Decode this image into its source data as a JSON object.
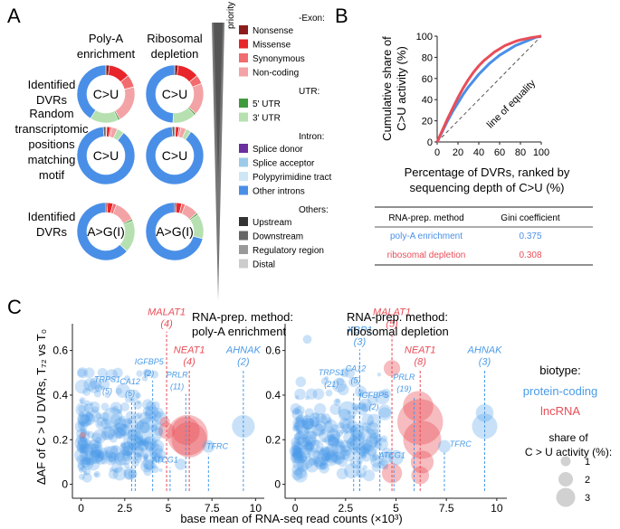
{
  "panels": {
    "a": "A",
    "b": "B",
    "c": "C"
  },
  "colors": {
    "nonsense": "#8c1c1c",
    "missense": "#e8252a",
    "synonymous": "#f26b6e",
    "noncoding": "#f3a3a6",
    "utr5": "#3f9a3c",
    "utr3": "#b6e0b0",
    "splice_donor": "#6b2fa0",
    "splice_acceptor": "#9ccbe9",
    "polypyr": "#cfe6f5",
    "other_introns": "#4a8fe7",
    "upstream": "#333333",
    "downstream": "#666666",
    "regulatory": "#999999",
    "distal": "#cccccc",
    "polyA": "#4a8fe7",
    "ribo": "#e84e58",
    "protein_coding": "#4a9be8",
    "lncrna": "#e84e58",
    "diagonal": "#555555"
  },
  "panelA": {
    "col_headers": [
      "Poly-A\nenrichment",
      "Ribosomal\ndepletion"
    ],
    "priority_label": "priority",
    "row_labels": [
      "Identified\nDVRs",
      "Random\ntranscriptomic\npositions\nmatching\nmotif",
      "Identified\nDVRs"
    ],
    "donut_centers": [
      "C>U",
      "C>U",
      "A>G(I)"
    ],
    "legend": [
      {
        "header": "Exon:",
        "items": [
          {
            "key": "nonsense",
            "label": "Nonsense"
          },
          {
            "key": "missense",
            "label": "Missense"
          },
          {
            "key": "synonymous",
            "label": "Synonymous"
          },
          {
            "key": "noncoding",
            "label": "Non-coding"
          }
        ]
      },
      {
        "header": "UTR:",
        "items": [
          {
            "key": "utr5",
            "label": "5' UTR"
          },
          {
            "key": "utr3",
            "label": "3' UTR"
          }
        ]
      },
      {
        "header": "Intron:",
        "items": [
          {
            "key": "splice_donor",
            "label": "Splice donor"
          },
          {
            "key": "splice_acceptor",
            "label": "Splice acceptor"
          },
          {
            "key": "polypyr",
            "label": "Polypyrimidine tract"
          },
          {
            "key": "other_introns",
            "label": "Other introns"
          }
        ]
      },
      {
        "header": "Others:",
        "items": [
          {
            "key": "upstream",
            "label": "Upstream"
          },
          {
            "key": "downstream",
            "label": "Downstream"
          },
          {
            "key": "regulatory",
            "label": "Regulatory region"
          },
          {
            "key": "distal",
            "label": "Distal"
          }
        ]
      }
    ]
  },
  "chart_data": [
    {
      "type": "pie",
      "title": "Genomic annotation of edited sites (donut charts, share in %)",
      "columns": [
        "Poly-A enrichment",
        "Ribosomal depletion"
      ],
      "donuts": [
        {
          "row": "Identified DVRs",
          "center": "C>U",
          "method": "Poly-A enrichment",
          "segments": [
            {
              "key": "nonsense",
              "value": 2
            },
            {
              "key": "missense",
              "value": 12
            },
            {
              "key": "synonymous",
              "value": 7
            },
            {
              "key": "noncoding",
              "value": 21
            },
            {
              "key": "utr5",
              "value": 1
            },
            {
              "key": "utr3",
              "value": 16
            },
            {
              "key": "other_introns",
              "value": 41
            }
          ]
        },
        {
          "row": "Identified DVRs",
          "center": "C>U",
          "method": "Ribosomal depletion",
          "segments": [
            {
              "key": "nonsense",
              "value": 2
            },
            {
              "key": "missense",
              "value": 12
            },
            {
              "key": "synonymous",
              "value": 5
            },
            {
              "key": "noncoding",
              "value": 18
            },
            {
              "key": "utr5",
              "value": 1
            },
            {
              "key": "utr3",
              "value": 13
            },
            {
              "key": "other_introns",
              "value": 49
            }
          ]
        },
        {
          "row": "Random transcriptomic positions matching motif",
          "center": "C>U",
          "method": "Poly-A enrichment",
          "segments": [
            {
              "key": "nonsense",
              "value": 0.5
            },
            {
              "key": "missense",
              "value": 2
            },
            {
              "key": "synonymous",
              "value": 1
            },
            {
              "key": "noncoding",
              "value": 3
            },
            {
              "key": "utr3",
              "value": 4
            },
            {
              "key": "other_introns",
              "value": 88
            },
            {
              "key": "downstream",
              "value": 1.5
            }
          ]
        },
        {
          "row": "Random transcriptomic positions matching motif",
          "center": "C>U",
          "method": "Ribosomal depletion",
          "segments": [
            {
              "key": "nonsense",
              "value": 0.5
            },
            {
              "key": "missense",
              "value": 2
            },
            {
              "key": "synonymous",
              "value": 1
            },
            {
              "key": "noncoding",
              "value": 3
            },
            {
              "key": "utr3",
              "value": 3
            },
            {
              "key": "other_introns",
              "value": 89
            },
            {
              "key": "downstream",
              "value": 1.5
            }
          ]
        },
        {
          "row": "Identified DVRs",
          "center": "A>G(I)",
          "method": "Poly-A enrichment",
          "segments": [
            {
              "key": "nonsense",
              "value": 1
            },
            {
              "key": "missense",
              "value": 3
            },
            {
              "key": "synonymous",
              "value": 2
            },
            {
              "key": "noncoding",
              "value": 12
            },
            {
              "key": "utr5",
              "value": 1
            },
            {
              "key": "utr3",
              "value": 18
            },
            {
              "key": "other_introns",
              "value": 63
            }
          ]
        },
        {
          "row": "Identified DVRs",
          "center": "A>G(I)",
          "method": "Ribosomal depletion",
          "segments": [
            {
              "key": "nonsense",
              "value": 1
            },
            {
              "key": "missense",
              "value": 3
            },
            {
              "key": "synonymous",
              "value": 2
            },
            {
              "key": "noncoding",
              "value": 8
            },
            {
              "key": "utr5",
              "value": 1
            },
            {
              "key": "utr3",
              "value": 14
            },
            {
              "key": "other_introns",
              "value": 71
            }
          ]
        }
      ]
    },
    {
      "type": "line",
      "title": "",
      "xlabel": "Percentage of DVRs, ranked by\nsequencing depth of C>U (%)",
      "ylabel": "Cumulative share of\nC>U activity (%)",
      "xlim": [
        0,
        100
      ],
      "ylim": [
        0,
        100
      ],
      "xticks": [
        0,
        20,
        40,
        60,
        80,
        100
      ],
      "yticks": [
        0,
        20,
        40,
        60,
        80,
        100
      ],
      "series": [
        {
          "name": "poly-A enrichment",
          "color_key": "polyA",
          "x": [
            0,
            5,
            10,
            15,
            20,
            25,
            30,
            35,
            40,
            45,
            50,
            55,
            60,
            65,
            70,
            75,
            80,
            85,
            90,
            95,
            100
          ],
          "y": [
            0,
            10,
            20,
            29,
            37,
            45,
            52,
            58,
            64,
            69,
            74,
            78,
            82,
            85,
            88,
            91,
            93,
            95,
            97,
            99,
            100
          ]
        },
        {
          "name": "ribosomal depletion",
          "color_key": "ribo",
          "x": [
            0,
            5,
            10,
            15,
            20,
            25,
            30,
            35,
            40,
            45,
            50,
            55,
            60,
            65,
            70,
            75,
            80,
            85,
            90,
            95,
            100
          ],
          "y": [
            0,
            11,
            22,
            32,
            42,
            51,
            59,
            66,
            72,
            77,
            81,
            85,
            88,
            91,
            93,
            95,
            96.5,
            97.5,
            98.5,
            99.3,
            100
          ]
        }
      ],
      "reference_line": {
        "label": "line of equality",
        "x": [
          0,
          100
        ],
        "y": [
          0,
          100
        ]
      },
      "table": {
        "headers": [
          "RNA-prep. method",
          "Gini coefficient"
        ],
        "rows": [
          {
            "method": "poly-A enrichment",
            "gini": "0.375",
            "color_key": "polyA"
          },
          {
            "method": "ribosomal depletion",
            "gini": "0.308",
            "color_key": "ribo"
          }
        ]
      }
    },
    {
      "type": "scatter",
      "ylabel": "ΔAF of C > U DVRs,  T₇₂ vs T₀",
      "xlabel": "base mean of RNA-seq read counts (×10³)",
      "xlim": [
        -0.5,
        10.5
      ],
      "ylim": [
        -0.03,
        0.72
      ],
      "xticks": [
        0,
        2.5,
        5,
        7.5,
        10
      ],
      "xticklabels": [
        "0",
        "2.5",
        "5",
        "7.5",
        "10"
      ],
      "yticks": [
        0,
        0.2,
        0.4,
        0.6
      ],
      "yticklabels": [
        "0",
        "0.2",
        "0.4",
        "0.6"
      ],
      "legend": {
        "biotype_title": "biotype:",
        "biotypes": [
          {
            "label": "protein-coding",
            "color_key": "protein_coding"
          },
          {
            "label": "lncRNA",
            "color_key": "lncrna"
          }
        ],
        "size_title": "share of\nC > U activity (%):",
        "sizes": [
          1,
          2,
          3
        ]
      },
      "panels": [
        {
          "title": "RNA-prep. method:\npoly-A enrichment",
          "points": [
            {
              "x": 6.1,
              "y": 0.22,
              "s": 3.2,
              "bio": "lncRNA"
            },
            {
              "x": 6.2,
              "y": 0.2,
              "s": 2.8,
              "bio": "lncRNA"
            },
            {
              "x": 6.0,
              "y": 0.24,
              "s": 2.2,
              "bio": "lncRNA"
            },
            {
              "x": 4.9,
              "y": 0.24,
              "s": 1.3,
              "bio": "lncRNA"
            },
            {
              "x": 4.8,
              "y": 0.28,
              "s": 0.8,
              "bio": "lncRNA"
            },
            {
              "x": 0.1,
              "y": 0.22,
              "s": 0.5,
              "bio": "lncRNA"
            },
            {
              "x": 9.3,
              "y": 0.26,
              "s": 1.8,
              "bio": "protein-coding"
            },
            {
              "x": 3.9,
              "y": 0.24,
              "s": 2.2,
              "bio": "protein-coding"
            },
            {
              "x": 3.0,
              "y": 0.2,
              "s": 1.6,
              "bio": "protein-coding"
            },
            {
              "x": 1.8,
              "y": 0.3,
              "s": 1.6,
              "bio": "protein-coding"
            },
            {
              "x": 7.3,
              "y": 0.17,
              "s": 1.0,
              "bio": "protein-coding"
            },
            {
              "x": 2.5,
              "y": 0.12,
              "s": 1.2,
              "bio": "protein-coding"
            },
            {
              "x": 2.8,
              "y": 0.05,
              "s": 1.0,
              "bio": "protein-coding"
            },
            {
              "x": 0.6,
              "y": 0.12,
              "s": 1.1,
              "bio": "protein-coding"
            },
            {
              "x": 5.7,
              "y": 0.09,
              "s": 0.9,
              "bio": "protein-coding"
            },
            {
              "x": 1.0,
              "y": 0.43,
              "s": 0.6,
              "bio": "protein-coding"
            }
          ],
          "labels": [
            {
              "text": "MALAT1",
              "n": "(4)",
              "x": 4.9,
              "bio": "lncRNA",
              "lx": 4.9,
              "ly": 0.75
            },
            {
              "text": "NEAT1",
              "n": "(4)",
              "x": 6.2,
              "bio": "lncRNA",
              "lx": 6.2,
              "ly": 0.58
            },
            {
              "text": "AHNAK",
              "n": "(2)",
              "x": 9.3,
              "bio": "protein-coding",
              "lx": 9.3,
              "ly": 0.58
            },
            {
              "text": "PRLR",
              "n": "(11)",
              "x": 6.0,
              "bio": "protein-coding",
              "lx": 5.5,
              "ly": 0.47
            },
            {
              "text": "IGFBP5",
              "n": "(2)",
              "x": 4.1,
              "bio": "protein-coding",
              "lx": 3.9,
              "ly": 0.53
            },
            {
              "text": "CA12",
              "n": "(5)",
              "x": 3.1,
              "bio": "protein-coding",
              "lx": 2.8,
              "ly": 0.44
            },
            {
              "text": "TRPS1",
              "n": "(5)",
              "x": 2.9,
              "bio": "protein-coding",
              "lx": 1.5,
              "ly": 0.45
            },
            {
              "text": "ATCG1",
              "n": "",
              "x": 5.1,
              "bio": "protein-coding",
              "lx": 4.8,
              "ly": 0.09
            },
            {
              "text": "TFRC",
              "n": "",
              "x": 7.3,
              "bio": "protein-coding",
              "lx": 7.8,
              "ly": 0.15
            }
          ]
        },
        {
          "title": "RNA-prep. method:\nribosomal depletion",
          "points": [
            {
              "x": 6.2,
              "y": 0.28,
              "s": 3.6,
              "bio": "lncRNA"
            },
            {
              "x": 6.3,
              "y": 0.2,
              "s": 3.0,
              "bio": "lncRNA"
            },
            {
              "x": 6.1,
              "y": 0.35,
              "s": 2.4,
              "bio": "lncRNA"
            },
            {
              "x": 6.3,
              "y": 0.1,
              "s": 1.8,
              "bio": "lncRNA"
            },
            {
              "x": 6.2,
              "y": 0.04,
              "s": 1.4,
              "bio": "lncRNA"
            },
            {
              "x": 4.8,
              "y": 0.52,
              "s": 1.3,
              "bio": "lncRNA"
            },
            {
              "x": 4.8,
              "y": 0.05,
              "s": 1.6,
              "bio": "lncRNA"
            },
            {
              "x": 3.4,
              "y": 0.2,
              "s": 2.2,
              "bio": "protein-coding"
            },
            {
              "x": 9.4,
              "y": 0.26,
              "s": 2.0,
              "bio": "protein-coding"
            },
            {
              "x": 9.4,
              "y": 0.32,
              "s": 1.4,
              "bio": "protein-coding"
            },
            {
              "x": 7.4,
              "y": 0.17,
              "s": 1.0,
              "bio": "protein-coding"
            },
            {
              "x": 0.6,
              "y": 0.65,
              "s": 0.7,
              "bio": "protein-coding"
            },
            {
              "x": 2.6,
              "y": 0.33,
              "s": 1.5,
              "bio": "protein-coding"
            },
            {
              "x": 2.8,
              "y": 0.06,
              "s": 1.2,
              "bio": "protein-coding"
            },
            {
              "x": 5.0,
              "y": 0.12,
              "s": 1.2,
              "bio": "protein-coding"
            }
          ],
          "labels": [
            {
              "text": "MALAT1",
              "n": "(5)",
              "x": 4.8,
              "bio": "lncRNA",
              "lx": 4.8,
              "ly": 0.75
            },
            {
              "text": "NEAT1",
              "n": "(8)",
              "x": 6.2,
              "bio": "lncRNA",
              "lx": 6.2,
              "ly": 0.58
            },
            {
              "text": "XBP1",
              "n": "(3)",
              "x": 3.2,
              "bio": "protein-coding",
              "lx": 3.2,
              "ly": 0.67
            },
            {
              "text": "AHNAK",
              "n": "(3)",
              "x": 9.4,
              "bio": "protein-coding",
              "lx": 9.4,
              "ly": 0.58
            },
            {
              "text": "PRLR",
              "n": "(19)",
              "x": 5.9,
              "bio": "protein-coding",
              "lx": 5.4,
              "ly": 0.46
            },
            {
              "text": "IGFBP5",
              "n": "(2)",
              "x": 4.2,
              "bio": "protein-coding",
              "lx": 3.9,
              "ly": 0.38
            },
            {
              "text": "CA12",
              "n": "(5)",
              "x": 3.2,
              "bio": "protein-coding",
              "lx": 3.0,
              "ly": 0.5
            },
            {
              "text": "TRPS1",
              "n": "(21)",
              "x": 2.9,
              "bio": "protein-coding",
              "lx": 1.8,
              "ly": 0.48
            },
            {
              "text": "ATCG1",
              "n": "",
              "x": 4.9,
              "bio": "protein-coding",
              "lx": 4.8,
              "ly": 0.11
            },
            {
              "text": "TFRC",
              "n": "",
              "x": 7.4,
              "bio": "protein-coding",
              "lx": 8.2,
              "ly": 0.16
            }
          ]
        }
      ]
    }
  ]
}
